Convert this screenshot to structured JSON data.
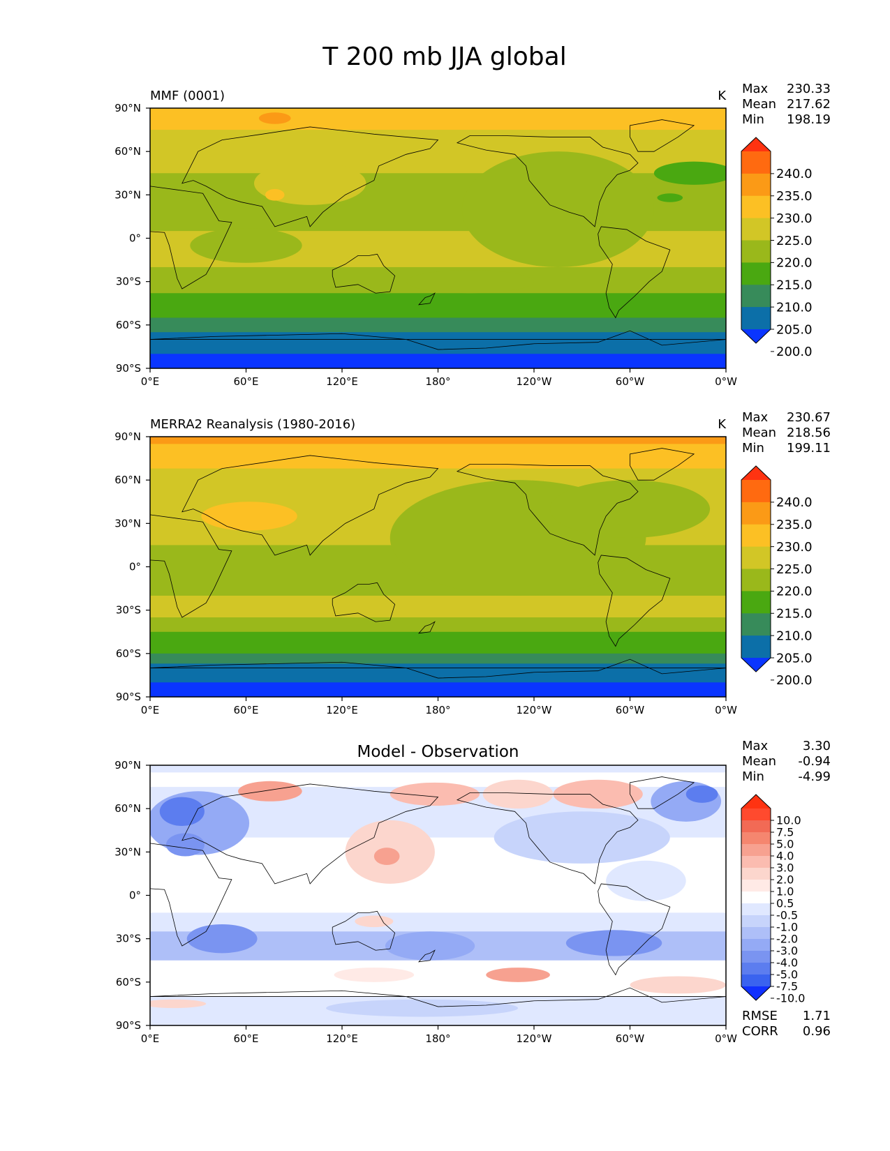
{
  "figure": {
    "title": "T 200 mb JJA global"
  },
  "axes": {
    "x_ticks": [
      "0°E",
      "60°E",
      "120°E",
      "180°",
      "120°W",
      "60°W",
      "0°W"
    ],
    "y_ticks": [
      "90°N",
      "60°N",
      "30°N",
      "0°",
      "30°S",
      "60°S",
      "90°S"
    ]
  },
  "panels": [
    {
      "id": "model",
      "label": "MMF (0001)",
      "units": "K",
      "title": "",
      "stats": [
        {
          "label": "Max",
          "value": "230.33"
        },
        {
          "label": "Mean",
          "value": "217.62"
        },
        {
          "label": "Min",
          "value": "198.19"
        }
      ],
      "colorbar": {
        "levels": [
          "240.0",
          "235.0",
          "230.0",
          "225.0",
          "220.0",
          "215.0",
          "210.0",
          "205.0",
          "200.0"
        ],
        "colors": [
          "#ff3311",
          "#ff6a10",
          "#fb9a16",
          "#fcc024",
          "#d2c626",
          "#9ab81b",
          "#4aa811",
          "#378b5a",
          "#0c6fa8",
          "#0a35ff"
        ]
      },
      "field_bands": [
        {
          "from": 90,
          "to": 75,
          "color": "#fcc024"
        },
        {
          "from": 75,
          "to": 45,
          "color": "#d2c626"
        },
        {
          "from": 45,
          "to": 5,
          "color": "#9ab81b"
        },
        {
          "from": 5,
          "to": -20,
          "color": "#d2c626"
        },
        {
          "from": -20,
          "to": -38,
          "color": "#9ab81b"
        },
        {
          "from": -38,
          "to": -55,
          "color": "#4aa811"
        },
        {
          "from": -55,
          "to": -65,
          "color": "#378b5a"
        },
        {
          "from": -65,
          "to": -80,
          "color": "#0c6fa8"
        },
        {
          "from": -80,
          "to": -90,
          "color": "#0a35ff"
        }
      ],
      "blobs": [
        {
          "lon": 255,
          "lat": 20,
          "rx": 60,
          "ry": 40,
          "color": "#9ab81b"
        },
        {
          "lon": 100,
          "lat": 38,
          "rx": 35,
          "ry": 15,
          "color": "#d2c626"
        },
        {
          "lon": 78,
          "lat": 30,
          "rx": 6,
          "ry": 4,
          "color": "#fcc024"
        },
        {
          "lon": 78,
          "lat": 83,
          "rx": 10,
          "ry": 4,
          "color": "#fb9a16"
        },
        {
          "lon": 325,
          "lat": 28,
          "rx": 8,
          "ry": 3,
          "color": "#4aa811"
        },
        {
          "lon": 200,
          "lat": -30,
          "rx": 40,
          "ry": 8,
          "color": "#9ab81b"
        },
        {
          "lon": 60,
          "lat": -5,
          "rx": 35,
          "ry": 12,
          "color": "#9ab81b"
        },
        {
          "lon": 340,
          "lat": 45,
          "rx": 25,
          "ry": 8,
          "color": "#4aa811"
        }
      ]
    },
    {
      "id": "obs",
      "label": "MERRA2 Reanalysis (1980-2016)",
      "units": "K",
      "title": "",
      "stats": [
        {
          "label": "Max",
          "value": "230.67"
        },
        {
          "label": "Mean",
          "value": "218.56"
        },
        {
          "label": "Min",
          "value": "199.11"
        }
      ],
      "colorbar": {
        "levels": [
          "240.0",
          "235.0",
          "230.0",
          "225.0",
          "220.0",
          "215.0",
          "210.0",
          "205.0",
          "200.0"
        ],
        "colors": [
          "#ff3311",
          "#ff6a10",
          "#fb9a16",
          "#fcc024",
          "#d2c626",
          "#9ab81b",
          "#4aa811",
          "#378b5a",
          "#0c6fa8",
          "#0a35ff"
        ]
      },
      "field_bands": [
        {
          "from": 90,
          "to": 85,
          "color": "#fb9a16"
        },
        {
          "from": 85,
          "to": 68,
          "color": "#fcc024"
        },
        {
          "from": 68,
          "to": 15,
          "color": "#d2c626"
        },
        {
          "from": 15,
          "to": -20,
          "color": "#9ab81b"
        },
        {
          "from": -20,
          "to": -35,
          "color": "#d2c626"
        },
        {
          "from": -35,
          "to": -45,
          "color": "#9ab81b"
        },
        {
          "from": -45,
          "to": -60,
          "color": "#4aa811"
        },
        {
          "from": -60,
          "to": -67,
          "color": "#378b5a"
        },
        {
          "from": -67,
          "to": -80,
          "color": "#0c6fa8"
        },
        {
          "from": -80,
          "to": -90,
          "color": "#0a35ff"
        }
      ],
      "blobs": [
        {
          "lon": 230,
          "lat": 20,
          "rx": 80,
          "ry": 40,
          "color": "#9ab81b"
        },
        {
          "lon": 62,
          "lat": 35,
          "rx": 30,
          "ry": 10,
          "color": "#fcc024"
        },
        {
          "lon": 300,
          "lat": 40,
          "rx": 50,
          "ry": 20,
          "color": "#9ab81b"
        },
        {
          "lon": 355,
          "lat": 25,
          "rx": 10,
          "ry": 8,
          "color": "#d2c626"
        }
      ]
    },
    {
      "id": "diff",
      "label": "",
      "units": "",
      "title": "Model - Observation",
      "stats": [
        {
          "label": "Max",
          "value": "3.30"
        },
        {
          "label": "Mean",
          "value": "-0.94"
        },
        {
          "label": "Min",
          "value": "-4.99"
        }
      ],
      "extra_stats": [
        {
          "label": "RMSE",
          "value": "1.71"
        },
        {
          "label": "CORR",
          "value": "0.96"
        }
      ],
      "colorbar": {
        "levels": [
          "10.0",
          "7.5",
          "5.0",
          "4.0",
          "3.0",
          "2.0",
          "1.0",
          "0.5",
          "-0.5",
          "-1.0",
          "-2.0",
          "-3.0",
          "-4.0",
          "-5.0",
          "-7.5",
          "-10.0"
        ],
        "colors": [
          "#ff3311",
          "#ff4a2e",
          "#f26a55",
          "#f5866f",
          "#f7a190",
          "#fbbcb0",
          "#fcd6cd",
          "#ffeae6",
          "#ffffff",
          "#e0e8ff",
          "#c7d4fb",
          "#aebff8",
          "#94aaf5",
          "#7a94f1",
          "#5c7def",
          "#3a63ef",
          "#1030ff"
        ]
      },
      "field_bands": [
        {
          "from": 90,
          "to": 85,
          "color": "#e0e8ff"
        },
        {
          "from": 85,
          "to": 75,
          "color": "#ffffff"
        },
        {
          "from": 75,
          "to": 40,
          "color": "#e0e8ff"
        },
        {
          "from": 40,
          "to": 8,
          "color": "#ffffff"
        },
        {
          "from": 8,
          "to": -12,
          "color": "#ffffff"
        },
        {
          "from": -12,
          "to": -25,
          "color": "#e0e8ff"
        },
        {
          "from": -25,
          "to": -45,
          "color": "#aebff8"
        },
        {
          "from": -45,
          "to": -70,
          "color": "#ffffff"
        },
        {
          "from": -70,
          "to": -90,
          "color": "#e0e8ff"
        }
      ],
      "blobs": [
        {
          "lon": 30,
          "lat": 50,
          "rx": 32,
          "ry": 22,
          "color": "#94aaf5"
        },
        {
          "lon": 20,
          "lat": 58,
          "rx": 14,
          "ry": 10,
          "color": "#5c7def"
        },
        {
          "lon": 22,
          "lat": 35,
          "rx": 12,
          "ry": 8,
          "color": "#7a94f1"
        },
        {
          "lon": 75,
          "lat": 72,
          "rx": 20,
          "ry": 7,
          "color": "#f7a190"
        },
        {
          "lon": 178,
          "lat": 70,
          "rx": 28,
          "ry": 8,
          "color": "#fbbcb0"
        },
        {
          "lon": 150,
          "lat": 30,
          "rx": 28,
          "ry": 22,
          "color": "#fcd6cd"
        },
        {
          "lon": 148,
          "lat": 27,
          "rx": 8,
          "ry": 6,
          "color": "#f7a190"
        },
        {
          "lon": 230,
          "lat": 70,
          "rx": 22,
          "ry": 10,
          "color": "#fcd6cd"
        },
        {
          "lon": 270,
          "lat": 40,
          "rx": 55,
          "ry": 18,
          "color": "#c7d4fb"
        },
        {
          "lon": 280,
          "lat": 70,
          "rx": 28,
          "ry": 10,
          "color": "#fbbcb0"
        },
        {
          "lon": 335,
          "lat": 65,
          "rx": 22,
          "ry": 14,
          "color": "#94aaf5"
        },
        {
          "lon": 345,
          "lat": 70,
          "rx": 10,
          "ry": 6,
          "color": "#5c7def"
        },
        {
          "lon": 310,
          "lat": 10,
          "rx": 25,
          "ry": 14,
          "color": "#e0e8ff"
        },
        {
          "lon": 45,
          "lat": -30,
          "rx": 22,
          "ry": 10,
          "color": "#7a94f1"
        },
        {
          "lon": 175,
          "lat": -35,
          "rx": 28,
          "ry": 10,
          "color": "#94aaf5"
        },
        {
          "lon": 290,
          "lat": -33,
          "rx": 30,
          "ry": 9,
          "color": "#7a94f1"
        },
        {
          "lon": 140,
          "lat": -18,
          "rx": 12,
          "ry": 4,
          "color": "#fcd6cd"
        },
        {
          "lon": 230,
          "lat": -55,
          "rx": 20,
          "ry": 5,
          "color": "#f7a190"
        },
        {
          "lon": 330,
          "lat": -62,
          "rx": 30,
          "ry": 6,
          "color": "#fcd6cd"
        },
        {
          "lon": 140,
          "lat": -55,
          "rx": 25,
          "ry": 5,
          "color": "#ffeae6"
        },
        {
          "lon": 15,
          "lat": -75,
          "rx": 20,
          "ry": 3,
          "color": "#fcd6cd"
        },
        {
          "lon": 170,
          "lat": -78,
          "rx": 60,
          "ry": 6,
          "color": "#c7d4fb"
        }
      ]
    }
  ]
}
